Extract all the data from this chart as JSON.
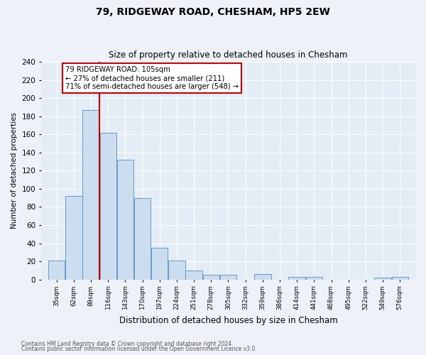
{
  "title": "79, RIDGEWAY ROAD, CHESHAM, HP5 2EW",
  "subtitle": "Size of property relative to detached houses in Chesham",
  "xlabel": "Distribution of detached houses by size in Chesham",
  "ylabel": "Number of detached properties",
  "bar_labels": [
    "35sqm",
    "62sqm",
    "89sqm",
    "116sqm",
    "143sqm",
    "170sqm",
    "197sqm",
    "224sqm",
    "251sqm",
    "278sqm",
    "305sqm",
    "332sqm",
    "359sqm",
    "386sqm",
    "414sqm",
    "441sqm",
    "468sqm",
    "495sqm",
    "522sqm",
    "549sqm",
    "576sqm"
  ],
  "bar_values": [
    21,
    92,
    187,
    162,
    132,
    90,
    35,
    21,
    10,
    5,
    5,
    0,
    6,
    0,
    3,
    3,
    0,
    0,
    0,
    2,
    3
  ],
  "bar_color": "#ccddf0",
  "bar_edge_color": "#6699cc",
  "annotation_title": "79 RIDGEWAY ROAD: 105sqm",
  "annotation_line1": "← 27% of detached houses are smaller (211)",
  "annotation_line2": "71% of semi-detached houses are larger (548) →",
  "annotation_box_color": "#ffffff",
  "annotation_box_edge": "#cc0000",
  "red_line_color": "#cc0000",
  "ylim": [
    0,
    240
  ],
  "yticks": [
    0,
    20,
    40,
    60,
    80,
    100,
    120,
    140,
    160,
    180,
    200,
    220,
    240
  ],
  "footer1": "Contains HM Land Registry data © Crown copyright and database right 2024.",
  "footer2": "Contains public sector information licensed under the Open Government Licence v3.0.",
  "bg_color": "#eef2f8",
  "plot_bg_color": "#e4ecf6"
}
